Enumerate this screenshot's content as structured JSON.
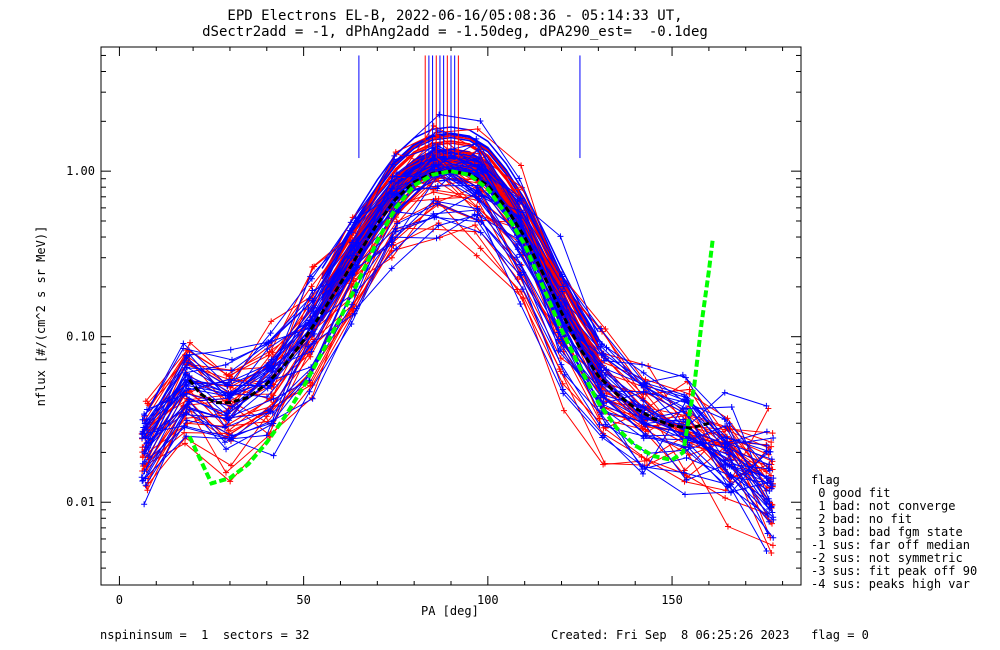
{
  "chart_data": {
    "type": "line",
    "title_line1": "EPD Electrons EL-B, 2022-06-16/05:08:36 - 05:14:33 UT,",
    "title_line2": "dSectr2add = -1, dPhAng2add = -1.50deg, dPA290_est=  -0.1deg",
    "xlabel": "PA [deg]",
    "ylabel": "nflux [#/(cm^2 s sr MeV)]",
    "xlim": [
      -5,
      185
    ],
    "ylim_log10": [
      -2.5,
      0.75
    ],
    "y_scale": "log",
    "x_ticks": [
      0,
      50,
      100,
      150
    ],
    "y_ticks": [
      {
        "v": 0.01,
        "label": "0.01"
      },
      {
        "v": 0.1,
        "label": "0.10"
      },
      {
        "v": 1.0,
        "label": "1.00"
      }
    ],
    "colors": {
      "red": "#ff0000",
      "blue": "#0000ff",
      "green": "#00ff00",
      "black": "#000000"
    },
    "green_fit": {
      "x": [
        19,
        25,
        30,
        35,
        40,
        45,
        50,
        55,
        60,
        65,
        70,
        75,
        80,
        85,
        90,
        95,
        100,
        105,
        110,
        115,
        120,
        125,
        130,
        135,
        140,
        145,
        150,
        153,
        156,
        158,
        160,
        161
      ],
      "y": [
        0.025,
        0.013,
        0.014,
        0.017,
        0.023,
        0.033,
        0.05,
        0.08,
        0.13,
        0.22,
        0.38,
        0.6,
        0.82,
        0.95,
        1.0,
        0.95,
        0.78,
        0.55,
        0.36,
        0.2,
        0.11,
        0.065,
        0.04,
        0.028,
        0.022,
        0.019,
        0.018,
        0.02,
        0.05,
        0.12,
        0.25,
        0.38
      ]
    },
    "black_fit": {
      "x": [
        19,
        22,
        26,
        30,
        35,
        40,
        45,
        50,
        55,
        60,
        65,
        70,
        75,
        80,
        85,
        90,
        95,
        100,
        105,
        110,
        115,
        120,
        125,
        130,
        135,
        140,
        145,
        150,
        155,
        160
      ],
      "y": [
        0.055,
        0.045,
        0.04,
        0.04,
        0.043,
        0.052,
        0.068,
        0.095,
        0.14,
        0.21,
        0.32,
        0.48,
        0.68,
        0.86,
        0.97,
        1.0,
        0.96,
        0.82,
        0.6,
        0.4,
        0.24,
        0.14,
        0.085,
        0.058,
        0.045,
        0.037,
        0.032,
        0.029,
        0.028,
        0.03
      ]
    },
    "blue_spikes": [
      {
        "x": 65,
        "y_top": 5.0,
        "y_bottom": 1.2
      },
      {
        "x": 125,
        "y_top": 5.0,
        "y_bottom": 1.2
      }
    ],
    "flag_legend": {
      "header": "flag",
      "items": [
        " 0 good fit",
        " 1 bad: not converge",
        " 2 bad: no fit",
        " 3 bad: bad fgm state",
        "-1 sus: far off median",
        "-2 sus: not symmetric",
        "-3 sus: fit peak off 90",
        "-4 sus: peaks high var"
      ]
    },
    "footer_left": "nspininsum =  1  sectors = 32",
    "footer_right": "Created: Fri Sep  8 06:25:26 2023   flag = 0"
  }
}
